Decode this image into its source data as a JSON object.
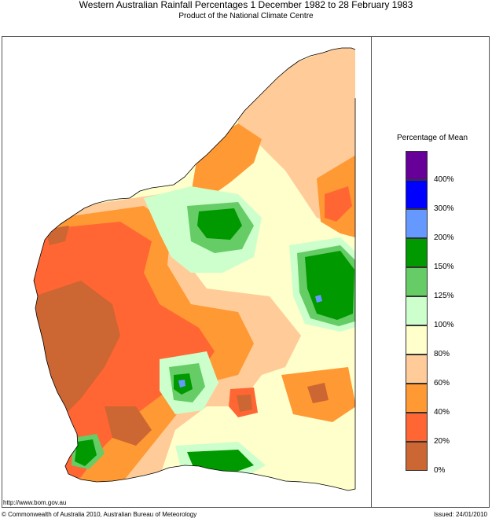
{
  "header": {
    "title": "Western Australian Rainfall Percentages 1 December 1982 to 28 February 1983",
    "subtitle": "Product of the National Climate Centre"
  },
  "legend": {
    "title": "Percentage of Mean",
    "bins": [
      {
        "color": "#660099"
      },
      {
        "color": "#0000ff"
      },
      {
        "color": "#6699ff"
      },
      {
        "color": "#009900"
      },
      {
        "color": "#66cc66"
      },
      {
        "color": "#ccffcc"
      },
      {
        "color": "#ffffcc"
      },
      {
        "color": "#ffcc99"
      },
      {
        "color": "#ff9933"
      },
      {
        "color": "#ff6633"
      },
      {
        "color": "#cc6633"
      }
    ],
    "ticks": [
      "400%",
      "300%",
      "200%",
      "150%",
      "125%",
      "100%",
      "80%",
      "60%",
      "40%",
      "20%",
      "0%"
    ]
  },
  "footer": {
    "url": "http://www.bom.gov.au",
    "copyright": "© Commonwealth of Australia 2010, Australian Bureau of Meteorology",
    "issued": "Issued: 24/01/2010"
  }
}
